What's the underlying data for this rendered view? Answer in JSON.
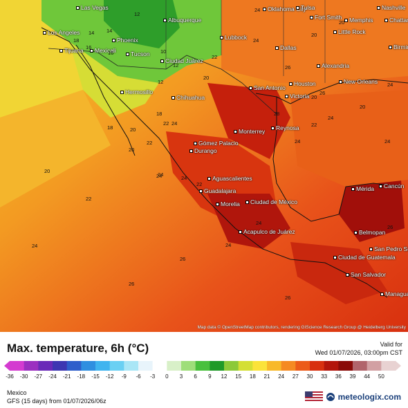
{
  "map": {
    "cities": [
      {
        "name": "Las Vegas"
      },
      {
        "name": "Los Angeles"
      },
      {
        "name": "Phoenix"
      },
      {
        "name": "Albuquerque"
      },
      {
        "name": "Tijuana"
      },
      {
        "name": "Mexicali"
      },
      {
        "name": "Tucson"
      },
      {
        "name": "Lubbock"
      },
      {
        "name": "Oklahoma City"
      },
      {
        "name": "Tulsa"
      },
      {
        "name": "Fort Smith"
      },
      {
        "name": "Memphis"
      },
      {
        "name": "Nashville"
      },
      {
        "name": "Little Rock"
      },
      {
        "name": "Dallas"
      },
      {
        "name": "Ciudad Juárez"
      },
      {
        "name": "Hermosillo"
      },
      {
        "name": "Chihuahua"
      },
      {
        "name": "San Antonio"
      },
      {
        "name": "Houston"
      },
      {
        "name": "Alexandria"
      },
      {
        "name": "New Orleans"
      },
      {
        "name": "Victoria"
      },
      {
        "name": "Monterrey"
      },
      {
        "name": "Reynosa"
      },
      {
        "name": "Gómez Palacio"
      },
      {
        "name": "Durango"
      },
      {
        "name": "Aguascalientes"
      },
      {
        "name": "Guadalajara"
      },
      {
        "name": "Morelia"
      },
      {
        "name": "Ciudad de México"
      },
      {
        "name": "Acapulco de Juárez"
      },
      {
        "name": "Mérida"
      },
      {
        "name": "Cancún"
      },
      {
        "name": "Belmopan"
      },
      {
        "name": "San Pedro Sula"
      },
      {
        "name": "Ciudad de Guatemala"
      },
      {
        "name": "San Salvador"
      },
      {
        "name": "Managua"
      },
      {
        "name": "Chattanooga"
      },
      {
        "name": "Birmingham"
      }
    ],
    "isotherm_labels": [
      "14",
      "12",
      "10",
      "16",
      "18",
      "20",
      "22",
      "24",
      "26",
      "24",
      "20",
      "22",
      "24",
      "24",
      "24",
      "26",
      "22",
      "20",
      "24",
      "20",
      "24",
      "18",
      "24",
      "22",
      "20",
      "16",
      "14",
      "12",
      "26",
      "28",
      "26",
      "24",
      "26",
      "24",
      "20",
      "24",
      "22",
      "20",
      "24",
      "26",
      "24",
      "12",
      "18",
      "20",
      "22"
    ],
    "credit": "Map data © OpenStreetMap contributors, rendering GIScience Research Group @ Heidelberg University"
  },
  "header": {
    "title": "Max. temperature, 6h (°C)",
    "valid_label": "Valid for",
    "valid_time": "Wed 01/07/2026, 03:00pm CST"
  },
  "legend": {
    "ticks": [
      "-36",
      "-30",
      "-27",
      "-24",
      "-21",
      "-18",
      "-15",
      "-12",
      "-9",
      "-6",
      "-3",
      "0",
      "3",
      "6",
      "9",
      "12",
      "15",
      "18",
      "21",
      "24",
      "27",
      "30",
      "33",
      "36",
      "39",
      "44",
      "50"
    ],
    "colors": [
      "#d43bd0",
      "#9b2fc0",
      "#6a2ab8",
      "#3d36b2",
      "#2f5ecb",
      "#2f8fe0",
      "#3fb4ef",
      "#6ad0f3",
      "#a9e6f6",
      "#e8f4fb",
      "#ffffff",
      "#d8f0c8",
      "#9ede7a",
      "#49c03d",
      "#1f9a28",
      "#8cc938",
      "#d4df34",
      "#fbe33a",
      "#f8b92a",
      "#f58a22",
      "#ec5b19",
      "#d8300f",
      "#b3150b",
      "#8a0b08",
      "#b1646b",
      "#d2a0a3",
      "#e8d2d2"
    ]
  },
  "footer": {
    "region": "Mexico",
    "model": "GFS (15 days) from 01/07/2026/06z",
    "brand": "meteologix.com"
  }
}
